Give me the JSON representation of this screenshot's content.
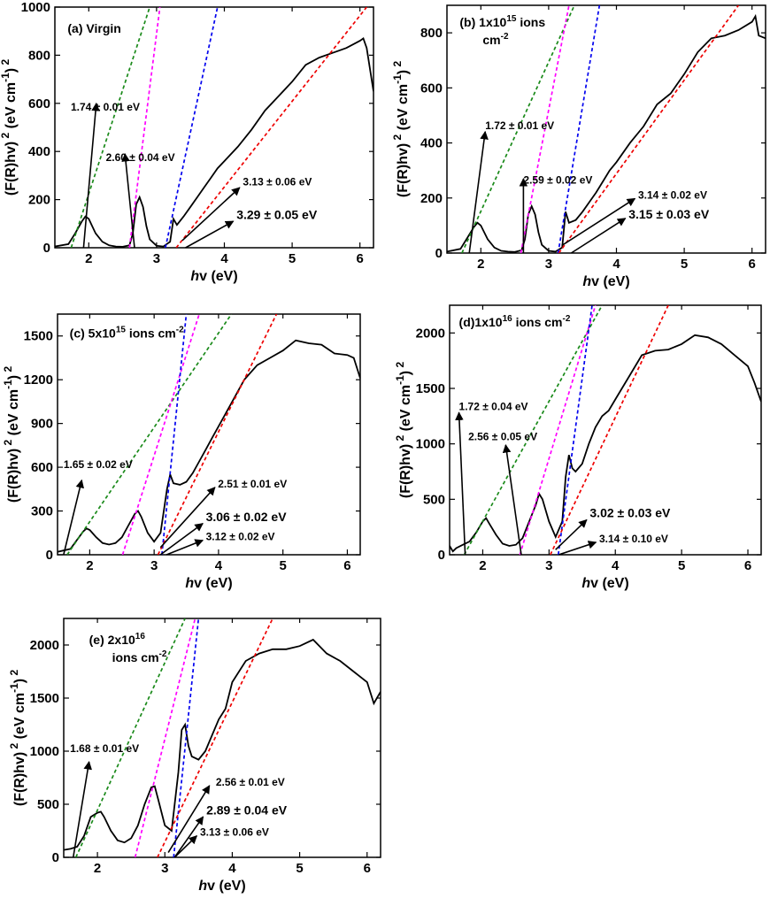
{
  "chart_data": [
    {
      "type": "line",
      "panel_label": "(a) Virgin",
      "title_lines": [
        "(a) Virgin"
      ],
      "xlabel": "hv (eV)",
      "ylabel": "(F(R)hv) 2 (eV cm-1) 2",
      "xlim": [
        1.5,
        6.2
      ],
      "ylim": [
        0,
        1000
      ],
      "xticks": [
        2,
        3,
        4,
        5,
        6
      ],
      "yticks": [
        0,
        200,
        400,
        600,
        800,
        1000
      ],
      "series": [
        {
          "color": "#000000",
          "style": "solid",
          "x": [
            1.5,
            1.7,
            1.8,
            1.9,
            1.95,
            2.0,
            2.1,
            2.2,
            2.3,
            2.4,
            2.5,
            2.6,
            2.65,
            2.7,
            2.75,
            2.8,
            2.85,
            2.9,
            3.0,
            3.1,
            3.2,
            3.25,
            3.3,
            3.4,
            3.5,
            3.6,
            3.7,
            3.8,
            3.9,
            4.0,
            4.2,
            4.4,
            4.6,
            4.8,
            5.0,
            5.2,
            5.4,
            5.6,
            5.8,
            6.0,
            6.05,
            6.1,
            6.2
          ],
          "y": [
            5,
            15,
            60,
            110,
            130,
            120,
            60,
            25,
            10,
            5,
            4,
            10,
            60,
            180,
            210,
            170,
            90,
            35,
            8,
            5,
            25,
            120,
            95,
            130,
            170,
            210,
            250,
            290,
            330,
            360,
            420,
            490,
            570,
            630,
            690,
            760,
            790,
            810,
            830,
            860,
            870,
            830,
            650
          ]
        },
        {
          "color": "#1a8a1a",
          "style": "dashed",
          "x": [
            1.74,
            2.9
          ],
          "y": [
            0,
            1000
          ]
        },
        {
          "color": "#ff00ff",
          "style": "dashed",
          "x": [
            2.6,
            3.05
          ],
          "y": [
            0,
            1000
          ]
        },
        {
          "color": "#0000ee",
          "style": "dashed",
          "x": [
            3.13,
            3.9
          ],
          "y": [
            0,
            1000
          ]
        },
        {
          "color": "#ee0000",
          "style": "dashed",
          "x": [
            3.29,
            6.1
          ],
          "y": [
            0,
            1000
          ]
        }
      ],
      "annotations": [
        {
          "text": "1.74 ± 0.01 eV",
          "size": "small"
        },
        {
          "text": "2.60 ± 0.04 eV",
          "size": "small"
        },
        {
          "text": "3.13 ± 0.06 eV",
          "size": "small"
        },
        {
          "text": "3.29 ± 0.05 eV",
          "size": "large"
        }
      ]
    },
    {
      "type": "line",
      "panel_label": "(b) 1x1015 ions cm-2",
      "title_lines": [
        "(b) 1x1015 ions",
        "cm-2"
      ],
      "xlabel": "hv (eV)",
      "ylabel": "(F(R)hv) 2 (eV cm-1) 2",
      "xlim": [
        1.5,
        6.2
      ],
      "ylim": [
        0,
        900
      ],
      "xticks": [
        2,
        3,
        4,
        5,
        6
      ],
      "yticks": [
        0,
        200,
        400,
        600,
        800
      ],
      "series": [
        {
          "color": "#000000",
          "style": "solid",
          "x": [
            1.5,
            1.7,
            1.8,
            1.9,
            1.95,
            2.0,
            2.1,
            2.2,
            2.3,
            2.4,
            2.5,
            2.6,
            2.65,
            2.7,
            2.75,
            2.8,
            2.85,
            2.9,
            3.0,
            3.1,
            3.2,
            3.25,
            3.3,
            3.4,
            3.5,
            3.6,
            3.7,
            3.8,
            3.9,
            4.0,
            4.2,
            4.4,
            4.6,
            4.8,
            5.0,
            5.2,
            5.4,
            5.6,
            5.8,
            6.0,
            6.05,
            6.1,
            6.2
          ],
          "y": [
            5,
            15,
            55,
            95,
            110,
            100,
            50,
            20,
            8,
            5,
            4,
            10,
            50,
            140,
            170,
            140,
            75,
            30,
            8,
            5,
            20,
            150,
            110,
            120,
            150,
            185,
            220,
            260,
            300,
            330,
            400,
            460,
            540,
            580,
            650,
            730,
            780,
            790,
            810,
            840,
            860,
            790,
            780
          ]
        },
        {
          "color": "#1a8a1a",
          "style": "dashed",
          "x": [
            1.72,
            3.38
          ],
          "y": [
            0,
            900
          ]
        },
        {
          "color": "#ff00ff",
          "style": "dashed",
          "x": [
            2.59,
            3.3
          ],
          "y": [
            0,
            900
          ]
        },
        {
          "color": "#0000ee",
          "style": "dashed",
          "x": [
            3.14,
            3.75
          ],
          "y": [
            0,
            900
          ]
        },
        {
          "color": "#ee0000",
          "style": "dashed",
          "x": [
            3.15,
            5.8
          ],
          "y": [
            0,
            900
          ]
        }
      ],
      "annotations": [
        {
          "text": "1.72 ± 0.01 eV",
          "size": "small"
        },
        {
          "text": "2.59 ± 0.02 eV",
          "size": "small"
        },
        {
          "text": "3.14 ± 0.02 eV",
          "size": "small"
        },
        {
          "text": "3.15 ± 0.03 eV",
          "size": "large"
        }
      ]
    },
    {
      "type": "line",
      "panel_label": "(c) 5x1015 ions cm-2",
      "title_lines": [
        "(c) 5x1015 ions cm-2"
      ],
      "xlabel": "hv (eV)",
      "ylabel": "(F(R)hv) 2 (eV cm-1) 2",
      "xlim": [
        1.5,
        6.2
      ],
      "ylim": [
        0,
        1650
      ],
      "xticks": [
        2,
        3,
        4,
        5,
        6
      ],
      "yticks": [
        0,
        300,
        600,
        900,
        1200,
        1500
      ],
      "series": [
        {
          "color": "#000000",
          "style": "solid",
          "x": [
            1.5,
            1.7,
            1.8,
            1.9,
            1.95,
            2.0,
            2.1,
            2.2,
            2.3,
            2.4,
            2.5,
            2.6,
            2.7,
            2.75,
            2.8,
            2.9,
            3.0,
            3.1,
            3.2,
            3.25,
            3.3,
            3.4,
            3.5,
            3.6,
            3.7,
            3.8,
            3.9,
            4.0,
            4.2,
            4.4,
            4.6,
            4.8,
            5.0,
            5.2,
            5.4,
            5.6,
            5.8,
            6.0,
            6.1,
            6.2
          ],
          "y": [
            20,
            40,
            100,
            160,
            180,
            170,
            120,
            80,
            70,
            80,
            120,
            200,
            280,
            300,
            260,
            150,
            90,
            150,
            450,
            550,
            490,
            480,
            500,
            560,
            640,
            720,
            800,
            880,
            1040,
            1200,
            1300,
            1350,
            1400,
            1470,
            1450,
            1440,
            1380,
            1370,
            1350,
            1210
          ]
        },
        {
          "color": "#1a8a1a",
          "style": "dashed",
          "x": [
            1.65,
            4.2
          ],
          "y": [
            0,
            1650
          ]
        },
        {
          "color": "#ff00ff",
          "style": "dashed",
          "x": [
            2.51,
            3.7
          ],
          "y": [
            0,
            1650
          ]
        },
        {
          "color": "#0000ee",
          "style": "dashed",
          "x": [
            3.12,
            3.5
          ],
          "y": [
            0,
            1650
          ]
        },
        {
          "color": "#ee0000",
          "style": "dashed",
          "x": [
            3.06,
            4.9
          ],
          "y": [
            0,
            1650
          ]
        }
      ],
      "annotations": [
        {
          "text": "1.65 ± 0.02 eV",
          "size": "small"
        },
        {
          "text": "2.51 ± 0.01 eV",
          "size": "small"
        },
        {
          "text": "3.06 ± 0.02 eV",
          "size": "large"
        },
        {
          "text": "3.12 ± 0.02 eV",
          "size": "small"
        }
      ]
    },
    {
      "type": "line",
      "panel_label": "(d) 1x1016 ions cm-2",
      "title_lines": [
        "(d)1x1016 ions cm-2"
      ],
      "xlabel": "hv (eV)",
      "ylabel": "(F(R)hv) 2 (eV cm-1) 2",
      "xlim": [
        1.5,
        6.2
      ],
      "ylim": [
        0,
        2250
      ],
      "xticks": [
        2,
        3,
        4,
        5,
        6
      ],
      "yticks": [
        0,
        500,
        1000,
        1500,
        2000
      ],
      "series": [
        {
          "color": "#000000",
          "style": "solid",
          "x": [
            1.5,
            1.55,
            1.6,
            1.7,
            1.8,
            1.9,
            2.0,
            2.05,
            2.1,
            2.2,
            2.3,
            2.4,
            2.5,
            2.6,
            2.7,
            2.8,
            2.85,
            2.9,
            3.0,
            3.1,
            3.2,
            3.25,
            3.3,
            3.35,
            3.4,
            3.5,
            3.6,
            3.7,
            3.8,
            3.9,
            4.0,
            4.2,
            4.4,
            4.6,
            4.8,
            5.0,
            5.2,
            5.4,
            5.6,
            5.8,
            6.0,
            6.1,
            6.2
          ],
          "y": [
            80,
            30,
            60,
            90,
            120,
            200,
            300,
            330,
            280,
            180,
            100,
            80,
            90,
            150,
            300,
            450,
            550,
            500,
            300,
            160,
            300,
            700,
            900,
            780,
            750,
            820,
            1000,
            1150,
            1250,
            1300,
            1400,
            1600,
            1800,
            1840,
            1850,
            1900,
            1980,
            1960,
            1900,
            1800,
            1700,
            1550,
            1380
          ]
        },
        {
          "color": "#1a8a1a",
          "style": "dashed",
          "x": [
            1.72,
            3.8
          ],
          "y": [
            0,
            2250
          ]
        },
        {
          "color": "#ff00ff",
          "style": "dashed",
          "x": [
            2.56,
            3.7
          ],
          "y": [
            0,
            2250
          ]
        },
        {
          "color": "#0000ee",
          "style": "dashed",
          "x": [
            3.14,
            3.65
          ],
          "y": [
            0,
            2250
          ]
        },
        {
          "color": "#ee0000",
          "style": "dashed",
          "x": [
            3.02,
            4.8
          ],
          "y": [
            0,
            2250
          ]
        }
      ],
      "annotations": [
        {
          "text": "1.72 ± 0.04 eV",
          "size": "small"
        },
        {
          "text": "2.56 ± 0.05 eV",
          "size": "small"
        },
        {
          "text": "3.02 ± 0.03 eV",
          "size": "large"
        },
        {
          "text": "3.14 ± 0.10 eV",
          "size": "small"
        }
      ]
    },
    {
      "type": "line",
      "panel_label": "(e) 2x1016 ions cm-2",
      "title_lines": [
        "(e)  2x1016",
        "ions cm-2"
      ],
      "xlabel": "hv (eV)",
      "ylabel": "(F(R)hv) 2 (eV cm-1) 2",
      "xlim": [
        1.5,
        6.2
      ],
      "ylim": [
        0,
        2250
      ],
      "xticks": [
        2,
        3,
        4,
        5,
        6
      ],
      "yticks": [
        0,
        500,
        1000,
        1500,
        2000
      ],
      "series": [
        {
          "color": "#000000",
          "style": "solid",
          "x": [
            1.5,
            1.6,
            1.7,
            1.8,
            1.9,
            2.0,
            2.05,
            2.1,
            2.2,
            2.3,
            2.4,
            2.5,
            2.6,
            2.7,
            2.8,
            2.85,
            2.9,
            3.0,
            3.1,
            3.2,
            3.25,
            3.3,
            3.35,
            3.4,
            3.5,
            3.6,
            3.7,
            3.8,
            3.9,
            4.0,
            4.2,
            4.4,
            4.6,
            4.8,
            5.0,
            5.2,
            5.4,
            5.6,
            5.8,
            6.0,
            6.1,
            6.2
          ],
          "y": [
            70,
            80,
            100,
            200,
            380,
            420,
            430,
            380,
            250,
            160,
            140,
            180,
            300,
            500,
            660,
            670,
            550,
            300,
            250,
            800,
            1200,
            1250,
            1050,
            950,
            920,
            1000,
            1150,
            1300,
            1400,
            1650,
            1850,
            1920,
            1960,
            1960,
            1990,
            2050,
            1920,
            1850,
            1750,
            1650,
            1450,
            1560
          ]
        },
        {
          "color": "#1a8a1a",
          "style": "dashed",
          "x": [
            1.68,
            3.3
          ],
          "y": [
            0,
            2250
          ]
        },
        {
          "color": "#ff00ff",
          "style": "dashed",
          "x": [
            2.56,
            3.45
          ],
          "y": [
            0,
            2250
          ]
        },
        {
          "color": "#0000ee",
          "style": "dashed",
          "x": [
            3.13,
            3.5
          ],
          "y": [
            0,
            2250
          ]
        },
        {
          "color": "#ee0000",
          "style": "dashed",
          "x": [
            2.89,
            4.6
          ],
          "y": [
            0,
            2250
          ]
        }
      ],
      "annotations": [
        {
          "text": "1.68 ± 0.01 eV",
          "size": "small"
        },
        {
          "text": "2.56 ± 0.01 eV",
          "size": "small"
        },
        {
          "text": "2.89 ± 0.04 eV",
          "size": "large"
        },
        {
          "text": "3.13 ± 0.06 eV",
          "size": "small"
        }
      ]
    }
  ]
}
